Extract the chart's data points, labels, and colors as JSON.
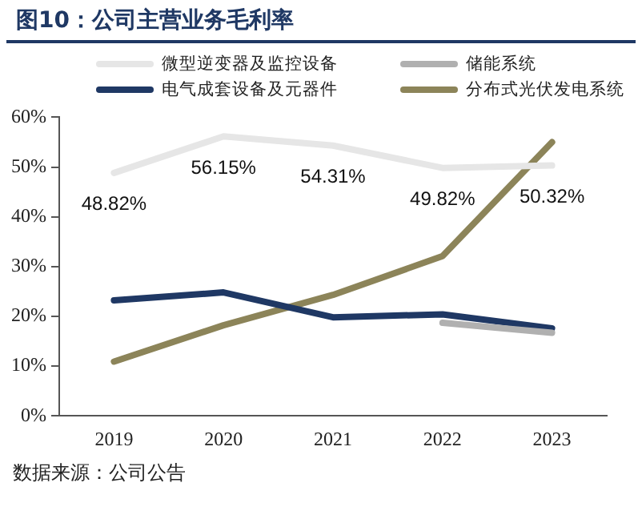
{
  "chart_data": {
    "type": "line",
    "title": "图10：公司主营业务毛利率",
    "categories": [
      "2019",
      "2020",
      "2021",
      "2022",
      "2023"
    ],
    "series": [
      {
        "name": "微型逆变器及监控设备",
        "color": "#e6e6e6",
        "values": [
          48.82,
          56.15,
          54.31,
          49.82,
          50.32
        ],
        "value_labels": [
          "48.82%",
          "56.15%",
          "54.31%",
          "49.82%",
          "50.32%"
        ]
      },
      {
        "name": "储能系统",
        "color": "#b0b0b0",
        "values": [
          null,
          null,
          null,
          18.7,
          16.7
        ]
      },
      {
        "name": "电气成套设备及元器件",
        "color": "#1f3864",
        "values": [
          23.2,
          24.8,
          19.8,
          20.4,
          17.6
        ]
      },
      {
        "name": "分布式光伏发电系统",
        "color": "#8c8459",
        "values": [
          10.9,
          18.2,
          24.3,
          32.1,
          55.0
        ]
      }
    ],
    "ylim": [
      0,
      60
    ],
    "yticks": [
      {
        "value": 0,
        "label": "0%"
      },
      {
        "value": 10,
        "label": "10%"
      },
      {
        "value": 20,
        "label": "20%"
      },
      {
        "value": 30,
        "label": "30%"
      },
      {
        "value": 40,
        "label": "40%"
      },
      {
        "value": 50,
        "label": "50%"
      },
      {
        "value": 60,
        "label": "60%"
      }
    ],
    "grid": false,
    "legend": "top",
    "marker": "none",
    "line_style": "solid",
    "annotations": [
      "数据来源：公司公告"
    ]
  }
}
